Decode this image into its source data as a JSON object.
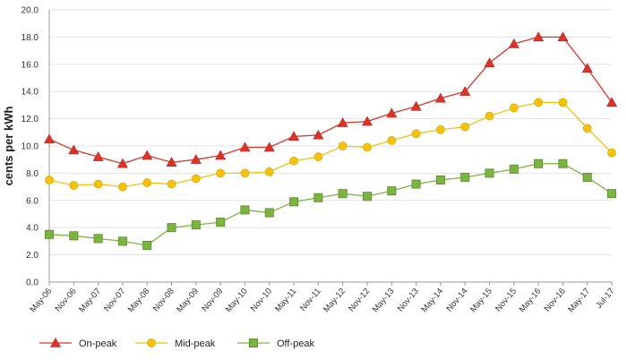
{
  "chart_data": {
    "type": "line",
    "title": "",
    "xlabel": "",
    "ylabel": "cents per kWh",
    "ylim": [
      0,
      20
    ],
    "y_ticks": [
      "0.0",
      "2.0",
      "4.0",
      "6.0",
      "8.0",
      "10.0",
      "12.0",
      "14.0",
      "16.0",
      "18.0",
      "20.0"
    ],
    "grid": "horizontal",
    "legend_position": "bottom-left",
    "categories": [
      "May-06",
      "Nov-06",
      "May-07",
      "Nov-07",
      "May-08",
      "Nov-08",
      "May-09",
      "Nov-09",
      "May-10",
      "Nov-10",
      "May-11",
      "Nov-11",
      "May-12",
      "Nov-12",
      "May-13",
      "Nov-13",
      "May-14",
      "Nov-14",
      "May-15",
      "Nov-15",
      "May-16",
      "Nov-16",
      "May-17",
      "Jul-17"
    ],
    "series": [
      {
        "name": "On-peak",
        "color": "#d9342b",
        "marker": "triangle",
        "values": [
          10.5,
          9.7,
          9.2,
          8.7,
          9.3,
          8.8,
          9.0,
          9.3,
          9.9,
          9.9,
          10.7,
          10.8,
          11.7,
          11.8,
          12.4,
          12.9,
          13.5,
          14.0,
          16.1,
          17.5,
          18.0,
          18.0,
          15.7,
          13.2
        ]
      },
      {
        "name": "Mid-peak",
        "color": "#f2c20f",
        "marker": "circle",
        "values": [
          7.5,
          7.1,
          7.2,
          7.0,
          7.3,
          7.2,
          7.6,
          8.0,
          8.0,
          8.1,
          8.9,
          9.2,
          10.0,
          9.9,
          10.4,
          10.9,
          11.2,
          11.4,
          12.2,
          12.8,
          13.2,
          13.2,
          11.3,
          9.5
        ]
      },
      {
        "name": "Off-peak",
        "color": "#7db342",
        "marker": "square",
        "values": [
          3.5,
          3.4,
          3.2,
          3.0,
          2.7,
          4.0,
          4.2,
          4.4,
          5.3,
          5.1,
          5.9,
          6.2,
          6.5,
          6.3,
          6.7,
          7.2,
          7.5,
          7.7,
          8.0,
          8.3,
          8.7,
          8.7,
          7.7,
          6.5
        ]
      }
    ]
  }
}
